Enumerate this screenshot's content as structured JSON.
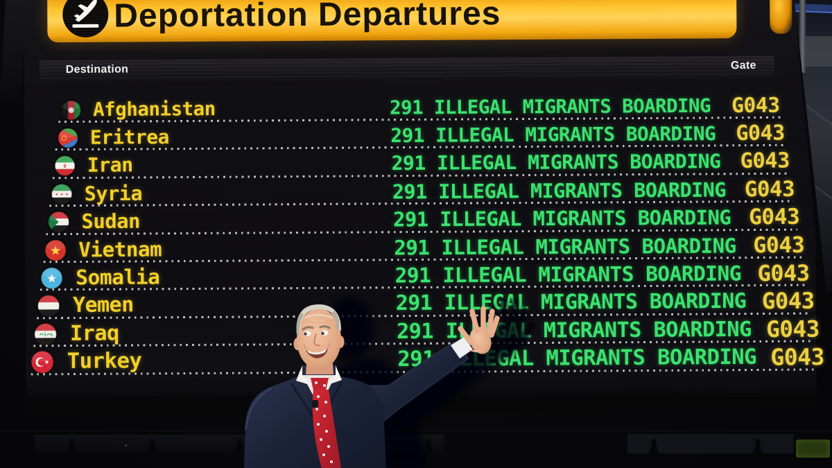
{
  "header": {
    "title": "Deportation Departures",
    "icon": "departures-plane-icon"
  },
  "columns": {
    "destination": "Destination",
    "gate": "Gate"
  },
  "rows": [
    {
      "flag": "flag-afghanistan",
      "destination": "Afghanistan",
      "status": "291 ILLEGAL MIGRANTS BOARDING",
      "gate": "G043"
    },
    {
      "flag": "flag-eritrea",
      "destination": "Eritrea",
      "status": "291 ILLEGAL MIGRANTS BOARDING",
      "gate": "G043"
    },
    {
      "flag": "flag-iran",
      "destination": "Iran",
      "status": "291 ILLEGAL MIGRANTS BOARDING",
      "gate": "G043"
    },
    {
      "flag": "flag-syria",
      "destination": "Syria",
      "status": "291 ILLEGAL MIGRANTS BOARDING",
      "gate": "G043"
    },
    {
      "flag": "flag-sudan",
      "destination": "Sudan",
      "status": "291 ILLEGAL MIGRANTS BOARDING",
      "gate": "G043"
    },
    {
      "flag": "flag-vietnam",
      "destination": "Vietnam",
      "status": "291 ILLEGAL MIGRANTS BOARDING",
      "gate": "G043"
    },
    {
      "flag": "flag-somalia",
      "destination": "Somalia",
      "status": "291 ILLEGAL MIGRANTS BOARDING",
      "gate": "G043"
    },
    {
      "flag": "flag-yemen",
      "destination": "Yemen",
      "status": "291 ILLEGAL MIGRANTS BOARDING",
      "gate": "G043"
    },
    {
      "flag": "flag-iraq",
      "destination": "Iraq",
      "status": "291 ILLEGAL MIGRANTS BOARDING",
      "gate": "G043"
    },
    {
      "flag": "flag-turkey",
      "destination": "Turkey",
      "status": "291 ILLEGAL MIGRANTS BOARDING",
      "gate": "G043"
    }
  ],
  "colors": {
    "header_yellow": "#ffc52f",
    "destination_yellow": "#f2cf2a",
    "status_green": "#3be26e",
    "gate_yellow": "#ecd042",
    "separator_dots": "#eeeef3"
  },
  "figure": {
    "name": "presenter-gesturing-at-board"
  }
}
